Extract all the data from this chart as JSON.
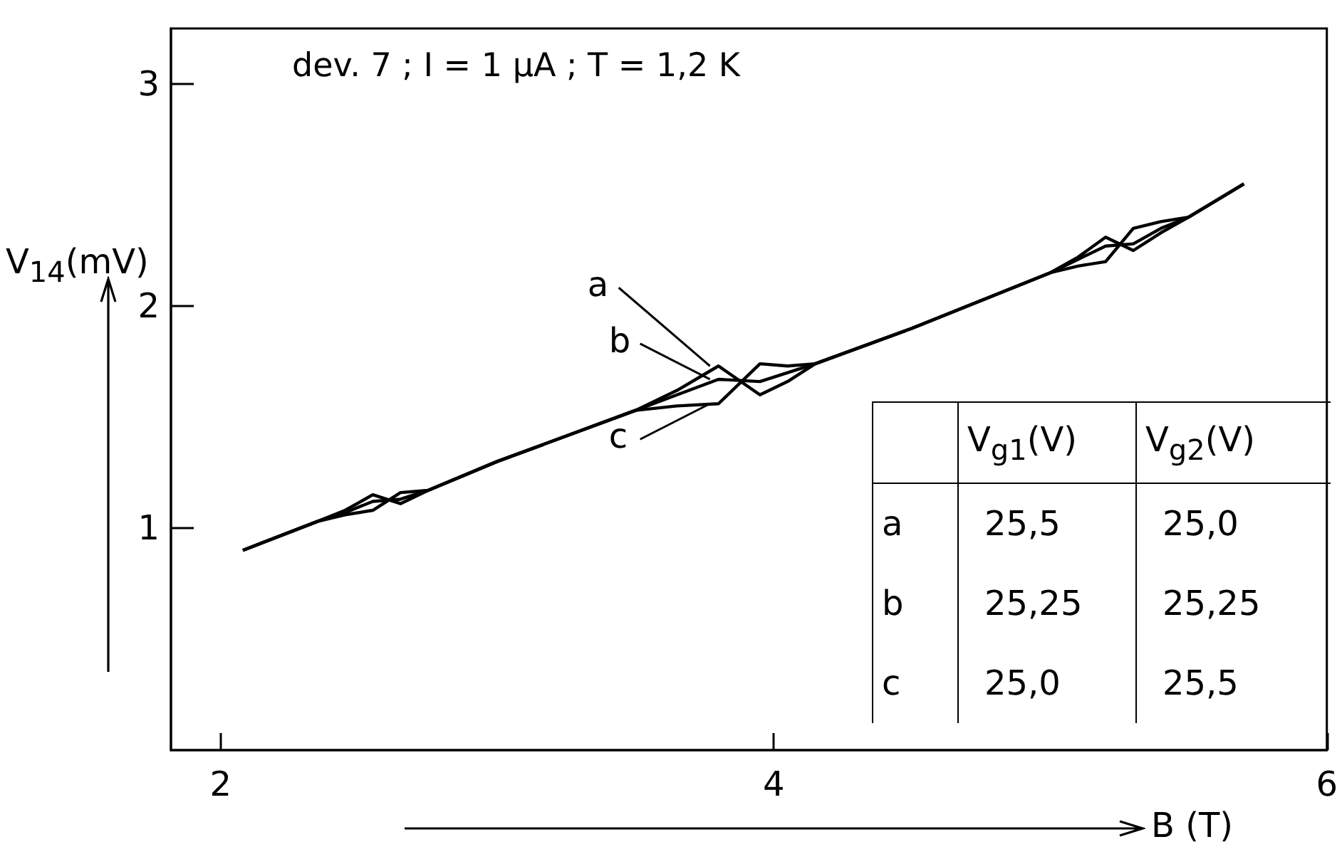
{
  "chart_data": {
    "type": "line",
    "title": "dev. 7 ; I = 1 μA ; T = 1,2 K",
    "xlabel": "B (T)",
    "ylabel": "V$_{14}$(mV)",
    "x": [
      2.08,
      2.35,
      2.45,
      2.55,
      2.65,
      2.75,
      3.0,
      3.5,
      3.65,
      3.8,
      3.95,
      4.05,
      4.15,
      4.5,
      5.0,
      5.1,
      5.2,
      5.3,
      5.4,
      5.5,
      5.7
    ],
    "series": [
      {
        "name": "a",
        "color": "#000000",
        "values": [
          0.9,
          1.03,
          1.08,
          1.15,
          1.11,
          1.17,
          1.3,
          1.53,
          1.62,
          1.73,
          1.6,
          1.66,
          1.74,
          1.9,
          2.15,
          2.22,
          2.31,
          2.25,
          2.33,
          2.4,
          2.55
        ]
      },
      {
        "name": "b",
        "color": "#000000",
        "values": [
          0.9,
          1.03,
          1.07,
          1.12,
          1.13,
          1.17,
          1.3,
          1.53,
          1.6,
          1.67,
          1.66,
          1.7,
          1.74,
          1.9,
          2.15,
          2.21,
          2.27,
          2.28,
          2.35,
          2.4,
          2.55
        ]
      },
      {
        "name": "c",
        "color": "#000000",
        "values": [
          0.9,
          1.03,
          1.06,
          1.08,
          1.16,
          1.17,
          1.3,
          1.53,
          1.55,
          1.56,
          1.74,
          1.73,
          1.74,
          1.9,
          2.15,
          2.18,
          2.2,
          2.35,
          2.38,
          2.4,
          2.55
        ]
      }
    ],
    "annotations": [
      "V$_{g1}$(V)",
      "V$_{g2}$(V)",
      "25,5",
      "25,0",
      "25,25",
      "25,25",
      "25,0",
      "25,5"
    ],
    "xlim": [
      1.82,
      6.0
    ],
    "ylim": [
      0,
      3.25
    ],
    "xticks": [
      2,
      4,
      6
    ],
    "yticks": [
      1,
      2,
      3
    ],
    "marker": "none",
    "line_style": "solid",
    "grid": false,
    "legend": "bottom right"
  }
}
